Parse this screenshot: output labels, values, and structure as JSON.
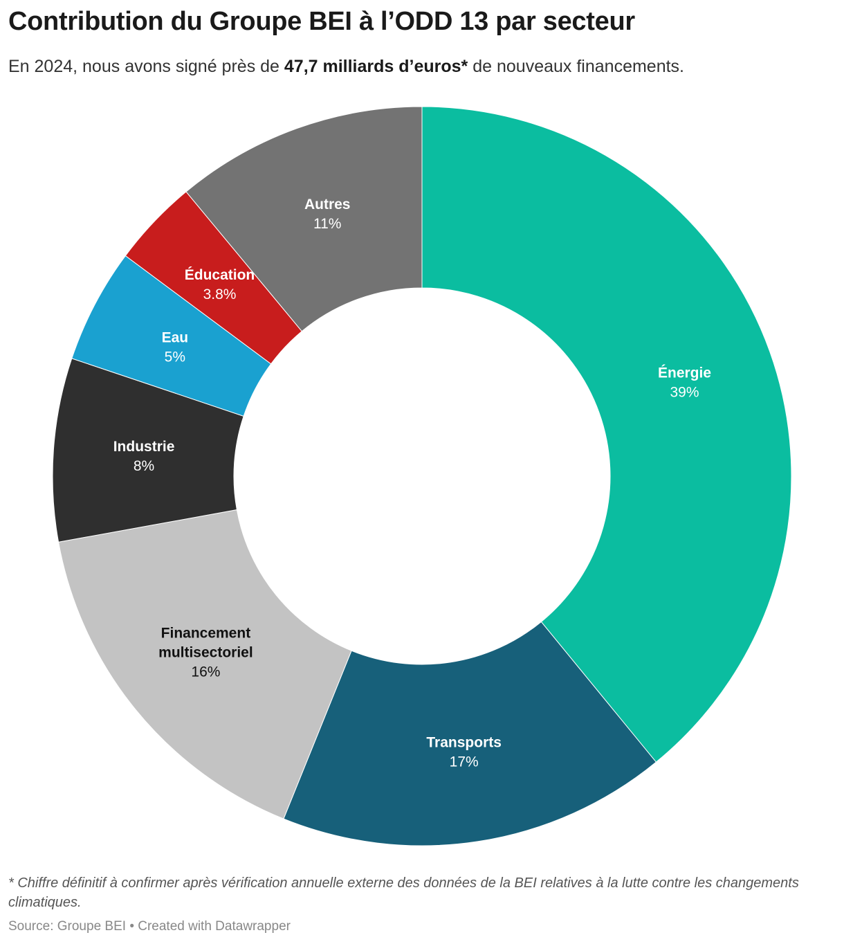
{
  "title": "Contribution du Groupe BEI à l’ODD 13 par secteur",
  "subtitle": {
    "before": "En 2024, nous avons signé près de ",
    "bold": "47,7 milliards d’euros*",
    "after": " de nouveaux financements."
  },
  "chart_data": {
    "type": "pie",
    "variant": "donut",
    "slices": [
      {
        "name": "Énergie",
        "value": 39,
        "label": "39%",
        "color": "#0bbda0",
        "text_color": "#ffffff"
      },
      {
        "name": "Transports",
        "value": 17,
        "label": "17%",
        "color": "#17607a",
        "text_color": "#ffffff"
      },
      {
        "name": "Financement multisectoriel",
        "name_lines": [
          "Financement",
          "multisectoriel"
        ],
        "value": 16,
        "label": "16%",
        "color": "#c3c3c3",
        "text_color": "#111111"
      },
      {
        "name": "Industrie",
        "value": 8,
        "label": "8%",
        "color": "#2f2f2f",
        "text_color": "#ffffff"
      },
      {
        "name": "Eau",
        "value": 5,
        "label": "5%",
        "color": "#1aa1d0",
        "text_color": "#ffffff"
      },
      {
        "name": "Éducation",
        "value": 3.8,
        "label": "3.8%",
        "color": "#c81d1d",
        "text_color": "#ffffff"
      },
      {
        "name": "Autres",
        "value": 11,
        "label": "11%",
        "color": "#737373",
        "text_color": "#ffffff"
      }
    ]
  },
  "footnote": "* Chiffre définitif à confirmer après vérification annuelle externe des données de la BEI relatives à la lutte contre les changements climatiques.",
  "source": "Source: Groupe BEI • Created with Datawrapper"
}
